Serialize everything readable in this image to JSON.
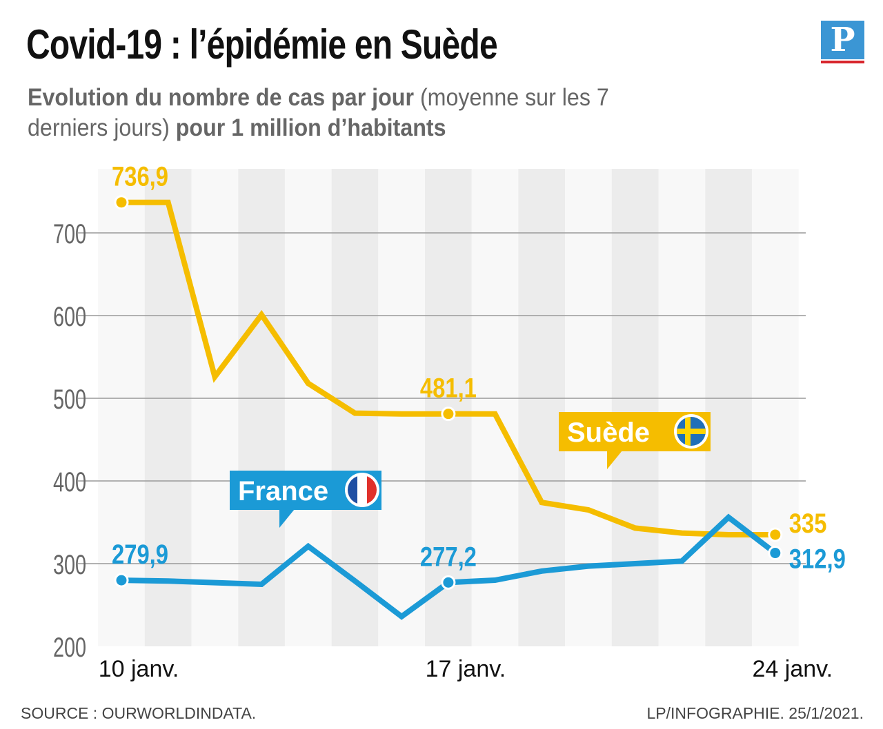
{
  "header": {
    "title": "Covid-19 : l’épidémie en Suède",
    "subtitle_bold_1": "Evolution du nombre de cas par jour",
    "subtitle_normal_1": " (moyenne sur les 7 derniers jours) ",
    "subtitle_bold_2": "pour 1 million d’habitants",
    "logo": "P"
  },
  "footer": {
    "source": "SOURCE : OURWORLDINDATA.",
    "credit": "LP/INFOGRAPHIE.  25/1/2021."
  },
  "chart_data": {
    "type": "line",
    "title": "",
    "xlabel": "",
    "ylabel": "",
    "x": [
      "10 janv.",
      "11 janv.",
      "12 janv.",
      "13 janv.",
      "14 janv.",
      "15 janv.",
      "16 janv.",
      "17 janv.",
      "18 janv.",
      "19 janv.",
      "20 janv.",
      "21 janv.",
      "22 janv.",
      "23 janv.",
      "24 janv."
    ],
    "x_tick_labels": [
      "10 janv.",
      "17 janv.",
      "24 janv."
    ],
    "ylim": [
      200,
      750
    ],
    "y_ticks": [
      200,
      300,
      400,
      500,
      600,
      700
    ],
    "grid": true,
    "series": [
      {
        "name": "Suède",
        "color": "#f5bd00",
        "flag": "sweden-flag",
        "values": [
          736.9,
          736.9,
          526,
          601,
          518,
          482,
          481,
          481.1,
          481,
          374,
          365,
          343,
          337,
          335,
          335
        ],
        "labels": [
          {
            "index": 0,
            "text": "736,9"
          },
          {
            "index": 7,
            "text": "481,1"
          },
          {
            "index": 14,
            "text": "335"
          }
        ]
      },
      {
        "name": "France",
        "color": "#1b9ad6",
        "flag": "france-flag",
        "values": [
          279.9,
          279,
          277,
          275,
          321,
          279,
          236,
          277.2,
          280,
          291,
          297,
          300,
          303,
          356,
          312.9
        ],
        "labels": [
          {
            "index": 0,
            "text": "279,9"
          },
          {
            "index": 7,
            "text": "277,2"
          },
          {
            "index": 14,
            "text": "312,9"
          }
        ]
      }
    ]
  }
}
